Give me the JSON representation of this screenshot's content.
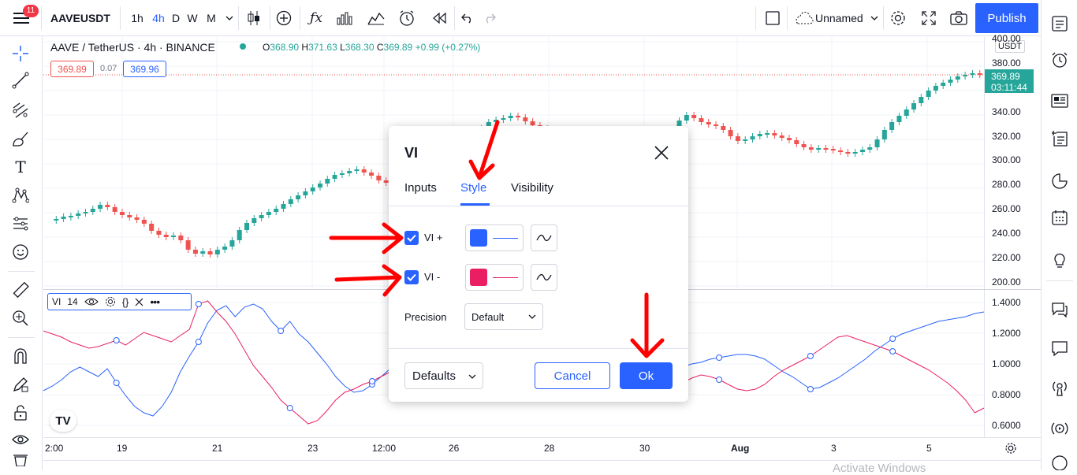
{
  "topbar": {
    "symbol": "AAVEUSDT",
    "intervals": [
      "1h",
      "4h",
      "D",
      "W",
      "M"
    ],
    "active_interval": "4h",
    "layout_name": "Unnamed",
    "publish_label": "Publish",
    "notification_count": "11"
  },
  "legend": {
    "title": "AAVE / TetherUS · 4h · BINANCE",
    "o_label": "O",
    "o_value": "368.90",
    "h_label": "H",
    "h_value": "371.63",
    "l_label": "L",
    "l_value": "368.30",
    "c_label": "C",
    "c_value": "369.89",
    "change": "+0.99 (+0.27%)",
    "sell_price": "369.89",
    "spread": "0.07",
    "buy_price": "369.96"
  },
  "price_axis": {
    "currency": "USDT",
    "labels": [
      "400.00",
      "380.00",
      "340.00",
      "320.00",
      "300.00",
      "280.00",
      "260.00",
      "240.00",
      "220.00",
      "200.00"
    ],
    "last_price": "369.89",
    "countdown": "03:11:44"
  },
  "indicator_pane": {
    "label": "VI",
    "length": "14",
    "axis_labels": [
      "1.4000",
      "1.2000",
      "1.0000",
      "0.8000",
      "0.6000"
    ]
  },
  "time_axis": [
    "2:00",
    "19",
    "21",
    "23",
    "12:00",
    "26",
    "28",
    "30",
    "Aug",
    "3",
    "5"
  ],
  "dialog": {
    "title": "VI",
    "tabs": [
      "Inputs",
      "Style",
      "Visibility"
    ],
    "active_tab": "Style",
    "plots": [
      {
        "label": "VI +",
        "checked": true,
        "color": "#2962ff"
      },
      {
        "label": "VI -",
        "checked": true,
        "color": "#e91e63"
      }
    ],
    "precision_label": "Precision",
    "precision_value": "Default",
    "defaults_label": "Defaults",
    "cancel_label": "Cancel",
    "ok_label": "Ok"
  },
  "watermark": "Activate Windows",
  "colors": {
    "up": "#26a69a",
    "down": "#ef5350",
    "accent": "#2962ff",
    "annotation": "#ff0000"
  }
}
